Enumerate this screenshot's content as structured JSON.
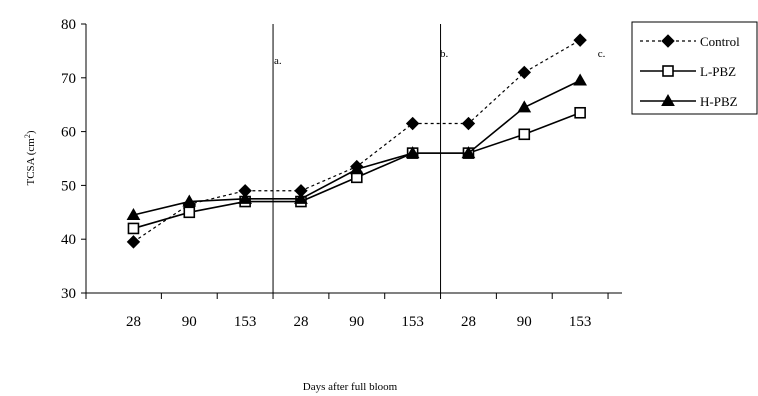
{
  "chart_data": {
    "type": "line",
    "title": "",
    "xlabel": "Days after full bloom",
    "ylabel": "TCSA (cm²)",
    "ylabel_main": "TCSA (cm",
    "ylabel_sup": "2",
    "ylabel_close": ")",
    "ylim": [
      30,
      80
    ],
    "yticks": [
      "30",
      "40",
      "50",
      "60",
      "70",
      "80"
    ],
    "x": [
      "28",
      "90",
      "153",
      "28",
      "90",
      "153",
      "28",
      "90",
      "153"
    ],
    "panels": [
      "a.",
      "b.",
      "c."
    ],
    "grid": false,
    "legend_position": "right",
    "series": [
      {
        "name": "Control",
        "marker": "diamond",
        "line": "dotted",
        "values": [
          39.5,
          46.5,
          49,
          49,
          53.5,
          61.5,
          61.5,
          71,
          77
        ]
      },
      {
        "name": "L-PBZ",
        "marker": "square-open",
        "line": "solid",
        "values": [
          42,
          45,
          47,
          47,
          51.5,
          56,
          56,
          59.5,
          63.5
        ]
      },
      {
        "name": "H-PBZ",
        "marker": "triangle",
        "line": "solid",
        "values": [
          44.5,
          47,
          47.5,
          47.5,
          53,
          56,
          56,
          64.5,
          69.5
        ]
      }
    ],
    "colors": {
      "line": "#000000",
      "background": "#ffffff"
    }
  }
}
